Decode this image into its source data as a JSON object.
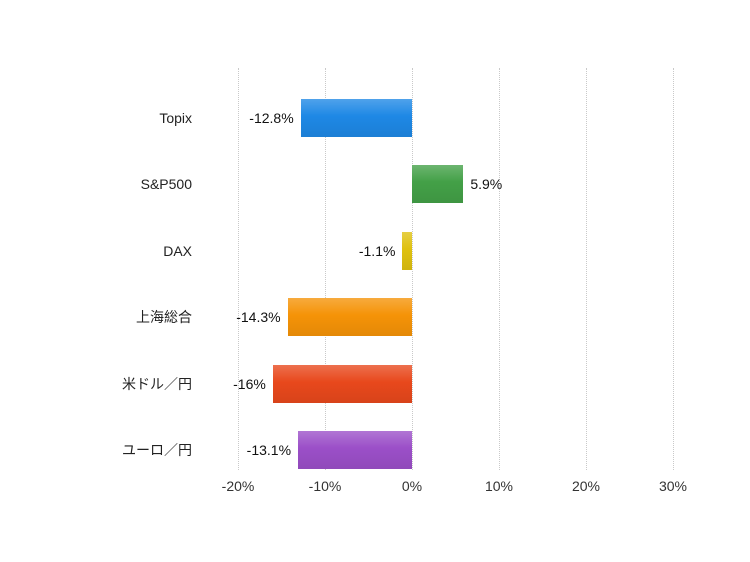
{
  "chart_data": {
    "type": "bar",
    "orientation": "horizontal",
    "title": "",
    "xlabel": "",
    "ylabel": "",
    "categories": [
      "Topix",
      "S&P500",
      "DAX",
      "上海総合",
      "米ドル／円",
      "ユーロ／円"
    ],
    "values": [
      -12.8,
      5.9,
      -1.1,
      -14.3,
      -16,
      -13.1
    ],
    "value_labels": [
      "-12.8%",
      "5.9%",
      "-1.1%",
      "-14.3%",
      "-16%",
      "-13.1%"
    ],
    "bar_colors": [
      "#1e88e5",
      "#43a047",
      "#dfc10f",
      "#f59307",
      "#e8481c",
      "#9b4fc8"
    ],
    "x_ticks": [
      -20,
      -10,
      0,
      10,
      20,
      30
    ],
    "x_tick_labels": [
      "-20%",
      "-10%",
      "0%",
      "10%",
      "20%",
      "30%"
    ],
    "xlim": [
      -20,
      30
    ],
    "grid": "dotted-vertical",
    "legend": "none",
    "background_color": "#ffffff"
  }
}
